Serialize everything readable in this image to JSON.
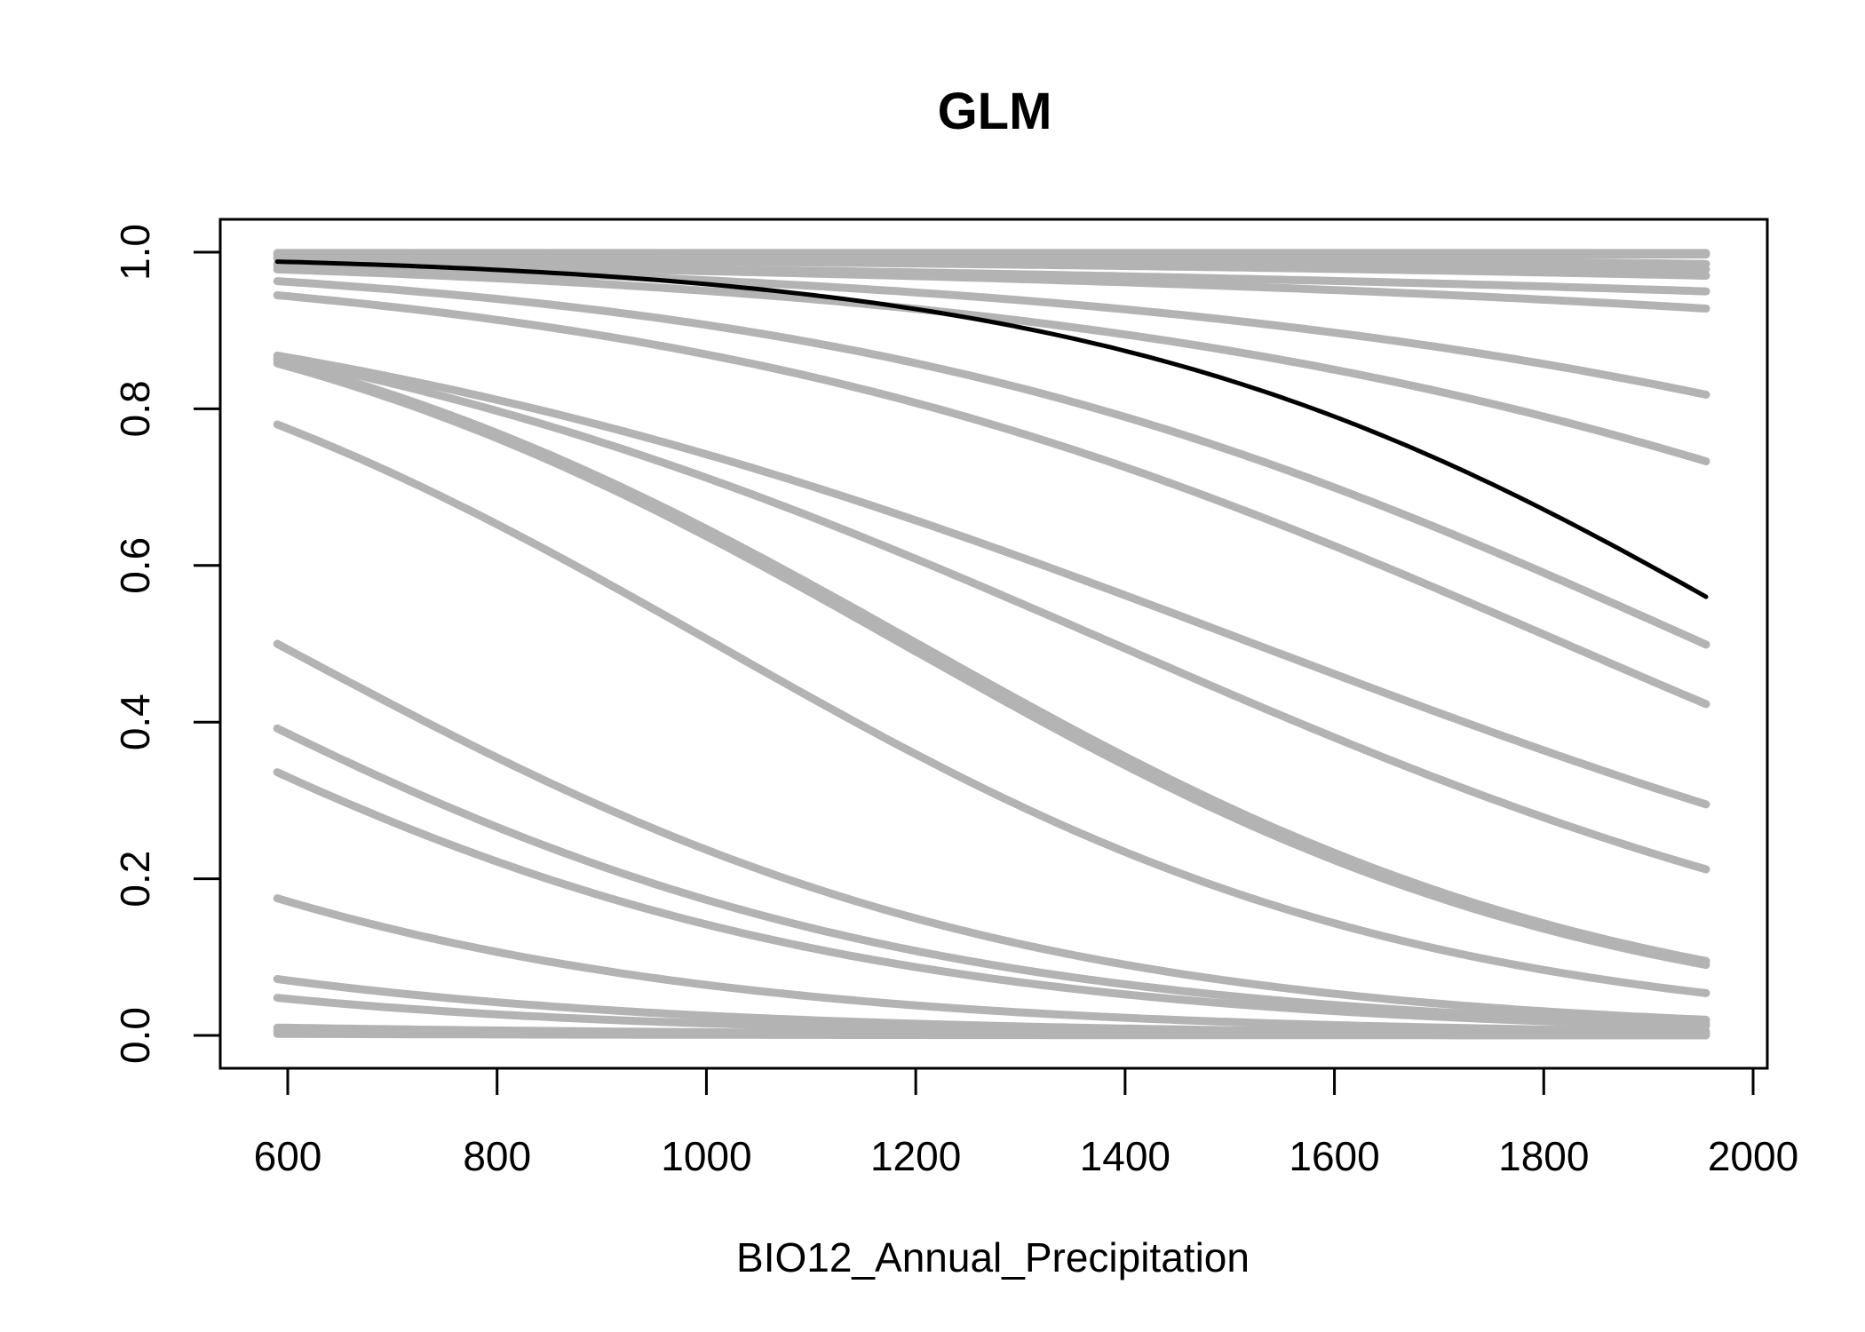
{
  "chart_data": {
    "type": "line",
    "title": "GLM",
    "xlabel": "BIO12_Annual_Precipitation",
    "ylabel": "",
    "xlim": [
      590,
      1955
    ],
    "ylim": [
      0,
      1
    ],
    "x_ticks": [
      600,
      800,
      1000,
      1200,
      1400,
      1600,
      1800,
      2000
    ],
    "y_ticks": [
      0.0,
      0.2,
      0.4,
      0.6,
      0.8,
      1.0
    ],
    "x_tick_labels": [
      "600",
      "800",
      "1000",
      "1200",
      "1400",
      "1600",
      "1800",
      "2000"
    ],
    "y_tick_labels": [
      "0.0",
      "0.2",
      "0.4",
      "0.6",
      "0.8",
      "1.0"
    ],
    "grid": false,
    "legend": "none",
    "colors": {
      "replicate": "#b3b3b3",
      "mean": "#000000",
      "frame": "#000000"
    },
    "replicates": [
      {
        "y_start": 0.999,
        "y_end": 0.999
      },
      {
        "y_start": 0.998,
        "y_end": 0.997
      },
      {
        "y_start": 0.997,
        "y_end": 0.985
      },
      {
        "y_start": 0.993,
        "y_end": 0.978
      },
      {
        "y_start": 0.992,
        "y_end": 0.97
      },
      {
        "y_start": 0.985,
        "y_end": 0.95
      },
      {
        "y_start": 0.985,
        "y_end": 0.928
      },
      {
        "y_start": 0.983,
        "y_end": 0.818
      },
      {
        "y_start": 0.978,
        "y_end": 0.733
      },
      {
        "y_start": 0.963,
        "y_end": 0.499
      },
      {
        "y_start": 0.945,
        "y_end": 0.423
      },
      {
        "y_start": 0.868,
        "y_end": 0.295
      },
      {
        "y_start": 0.865,
        "y_end": 0.212
      },
      {
        "y_start": 0.862,
        "y_end": 0.095
      },
      {
        "y_start": 0.858,
        "y_end": 0.09
      },
      {
        "y_start": 0.78,
        "y_end": 0.054
      },
      {
        "y_start": 0.5,
        "y_end": 0.02
      },
      {
        "y_start": 0.392,
        "y_end": 0.015
      },
      {
        "y_start": 0.336,
        "y_end": 0.012
      },
      {
        "y_start": 0.175,
        "y_end": 0.005
      },
      {
        "y_start": 0.072,
        "y_end": 0.002
      },
      {
        "y_start": 0.048,
        "y_end": 0.001
      },
      {
        "y_start": 0.01,
        "y_end": 0.0005
      },
      {
        "y_start": 0.005,
        "y_end": 0.0003
      },
      {
        "y_start": 0.002,
        "y_end": 0.0001
      }
    ],
    "mean_curve": {
      "y_start": 0.988,
      "y_end": 0.56
    }
  }
}
